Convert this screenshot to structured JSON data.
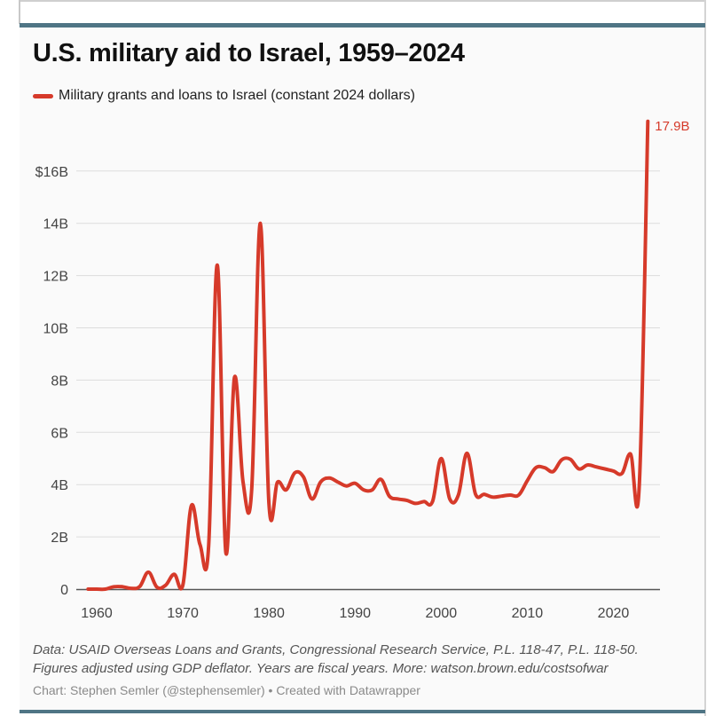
{
  "title": "U.S. military aid to Israel, 1959–2024",
  "legend": {
    "label": "Military grants and loans to Israel (constant 2024 dollars)",
    "color": "#d63a2a"
  },
  "notes": {
    "line1": "Data: USAID Overseas Loans and Grants, Congressional Research Service, P.L. 118-47, P.L. 118-50.",
    "line2": "Figures adjusted using GDP deflator. Years are fiscal years. More: watson.brown.edu/costsofwar"
  },
  "credit": "Chart: Stephen Semler (@stephensemler) • Created with Datawrapper",
  "colors": {
    "line": "#d63a2a",
    "frame_bar": "#4f7585",
    "grid": "#dddddd",
    "axis": "#555555",
    "tick_text": "#444444",
    "annotation": "#d63a2a"
  },
  "chart_data": {
    "type": "line",
    "title": "U.S. military aid to Israel, 1959–2024",
    "xlabel": "",
    "ylabel": "",
    "units": "billions of constant 2024 US dollars",
    "xlim": [
      1959,
      2024
    ],
    "ylim": [
      0,
      18
    ],
    "grid": true,
    "legend_position": "top-left",
    "x_ticks": [
      1960,
      1970,
      1980,
      1990,
      2000,
      2010,
      2020
    ],
    "x_tick_labels": [
      "1960",
      "1970",
      "1980",
      "1990",
      "2000",
      "2010",
      "2020"
    ],
    "y_ticks": [
      0,
      2,
      4,
      6,
      8,
      10,
      12,
      14,
      16
    ],
    "y_tick_labels": [
      "0",
      "2B",
      "4B",
      "6B",
      "8B",
      "10B",
      "12B",
      "14B",
      "$16B"
    ],
    "annotations": [
      {
        "x": 2024,
        "y": 17.9,
        "text": "17.9B"
      }
    ],
    "series": [
      {
        "name": "Military grants and loans to Israel (constant 2024 dollars)",
        "x": [
          1959,
          1960,
          1961,
          1962,
          1963,
          1964,
          1965,
          1966,
          1967,
          1968,
          1969,
          1970,
          1971,
          1972,
          1973,
          1974,
          1975,
          1976,
          1977,
          1978,
          1979,
          1980,
          1981,
          1982,
          1983,
          1984,
          1985,
          1986,
          1987,
          1988,
          1989,
          1990,
          1991,
          1992,
          1993,
          1994,
          1995,
          1996,
          1997,
          1998,
          1999,
          2000,
          2001,
          2002,
          2003,
          2004,
          2005,
          2006,
          2007,
          2008,
          2009,
          2010,
          2011,
          2012,
          2013,
          2014,
          2015,
          2016,
          2017,
          2018,
          2019,
          2020,
          2021,
          2022,
          2023,
          2024
        ],
        "values": [
          0.0,
          0.0,
          0.0,
          0.09,
          0.09,
          0.03,
          0.1,
          0.65,
          0.07,
          0.15,
          0.57,
          0.15,
          3.2,
          1.7,
          1.65,
          12.4,
          1.4,
          8.1,
          4.1,
          3.8,
          14.0,
          3.26,
          4.1,
          3.8,
          4.45,
          4.3,
          3.45,
          4.1,
          4.25,
          4.1,
          3.95,
          4.05,
          3.8,
          3.8,
          4.2,
          3.55,
          3.45,
          3.4,
          3.28,
          3.35,
          3.35,
          5.0,
          3.45,
          3.6,
          5.2,
          3.63,
          3.63,
          3.52,
          3.56,
          3.6,
          3.6,
          4.15,
          4.65,
          4.65,
          4.5,
          4.95,
          4.97,
          4.6,
          4.75,
          4.68,
          4.6,
          4.52,
          4.43,
          5.17,
          3.93,
          17.9
        ]
      }
    ]
  }
}
